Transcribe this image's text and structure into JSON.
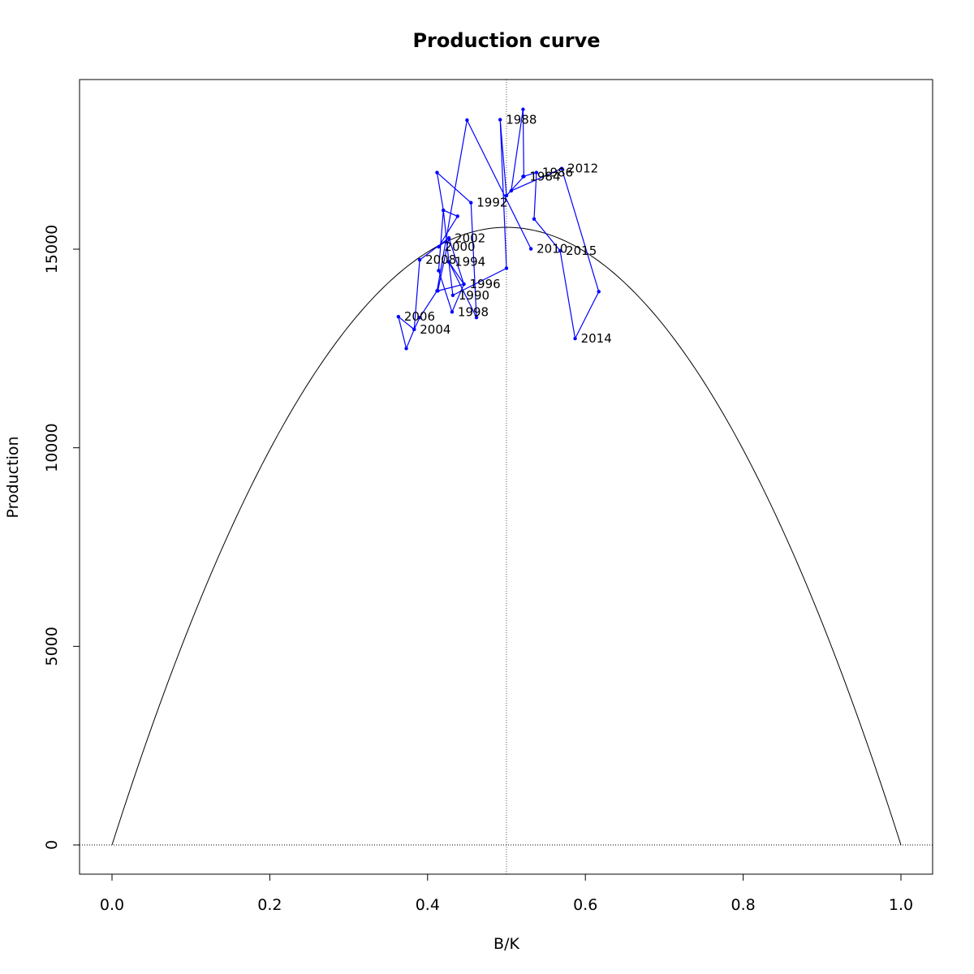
{
  "chart_data": {
    "type": "scatter",
    "title": "Production curve",
    "xlabel": "B/K",
    "ylabel": "Production",
    "xlim": [
      -0.04,
      1.04
    ],
    "ylim": [
      -730,
      19250
    ],
    "x_ticks": [
      "0.0",
      "0.2",
      "0.4",
      "0.6",
      "0.8",
      "1.0"
    ],
    "y_ticks": [
      "0",
      "5000",
      "10000",
      "15000"
    ],
    "grid": false,
    "reference_lines": [
      {
        "orientation": "vertical",
        "x": 0.5,
        "style": "dotted"
      },
      {
        "orientation": "horizontal",
        "y": 0,
        "style": "dotted"
      }
    ],
    "curve": {
      "type": "parabola",
      "formula": "4*MSY*x*(1-x)",
      "msy": 15550,
      "color": "#000000"
    },
    "series": [
      {
        "color": "#0000ff",
        "points": [
          {
            "x": 0.521,
            "y": 18520
          },
          {
            "x": 0.492,
            "y": 18260,
            "label": "1988"
          },
          {
            "x": 0.5,
            "y": 14520
          },
          {
            "x": 0.462,
            "y": 13280
          },
          {
            "x": 0.455,
            "y": 16170,
            "label": "1992"
          },
          {
            "x": 0.412,
            "y": 16930
          },
          {
            "x": 0.42,
            "y": 15980
          },
          {
            "x": 0.427,
            "y": 14680,
            "label": "1994"
          },
          {
            "x": 0.446,
            "y": 14120,
            "label": "1996"
          },
          {
            "x": 0.431,
            "y": 13420,
            "label": "1998"
          },
          {
            "x": 0.414,
            "y": 15060,
            "label": "2000"
          },
          {
            "x": 0.427,
            "y": 15280,
            "label": "2002"
          },
          {
            "x": 0.383,
            "y": 12980,
            "label": "2004"
          },
          {
            "x": 0.363,
            "y": 13300,
            "label": "2006"
          },
          {
            "x": 0.39,
            "y": 14730,
            "label": "2008"
          },
          {
            "x": 0.531,
            "y": 15010,
            "label": "2010"
          },
          {
            "x": 0.57,
            "y": 17030,
            "label": "2012"
          },
          {
            "x": 0.587,
            "y": 12750,
            "label": "2014"
          },
          {
            "x": 0.568,
            "y": 14960,
            "label": "2015"
          }
        ]
      }
    ],
    "extra_labels": [
      {
        "x": 0.522,
        "y": 16830,
        "text": "1984"
      },
      {
        "x": 0.538,
        "y": 16930,
        "text": "1986"
      },
      {
        "x": 0.432,
        "y": 13840,
        "text": "1990"
      }
    ],
    "connection_path": [
      [
        0.521,
        16830
      ],
      [
        0.538,
        16930
      ],
      [
        0.535,
        15760
      ],
      [
        0.568,
        14960
      ],
      [
        0.587,
        12750
      ],
      [
        0.617,
        13930
      ],
      [
        0.57,
        17030
      ],
      [
        0.506,
        16470
      ],
      [
        0.521,
        18520
      ],
      [
        0.522,
        16830
      ],
      [
        0.5,
        16350
      ],
      [
        0.492,
        18260
      ],
      [
        0.5,
        14520
      ],
      [
        0.432,
        13840
      ],
      [
        0.427,
        14680
      ],
      [
        0.462,
        13280
      ],
      [
        0.455,
        16170
      ],
      [
        0.412,
        16930
      ],
      [
        0.42,
        15980
      ],
      [
        0.427,
        14680
      ],
      [
        0.446,
        14120
      ],
      [
        0.431,
        13420
      ],
      [
        0.414,
        14460
      ],
      [
        0.42,
        15980
      ],
      [
        0.438,
        15830
      ],
      [
        0.414,
        15060
      ],
      [
        0.427,
        15280
      ],
      [
        0.446,
        14120
      ],
      [
        0.413,
        13950
      ],
      [
        0.427,
        15280
      ],
      [
        0.39,
        14730
      ],
      [
        0.383,
        12980
      ],
      [
        0.363,
        13300
      ],
      [
        0.373,
        12500
      ],
      [
        0.383,
        12980
      ],
      [
        0.39,
        13280
      ],
      [
        0.412,
        13950
      ],
      [
        0.45,
        18250
      ],
      [
        0.531,
        15010
      ]
    ]
  }
}
